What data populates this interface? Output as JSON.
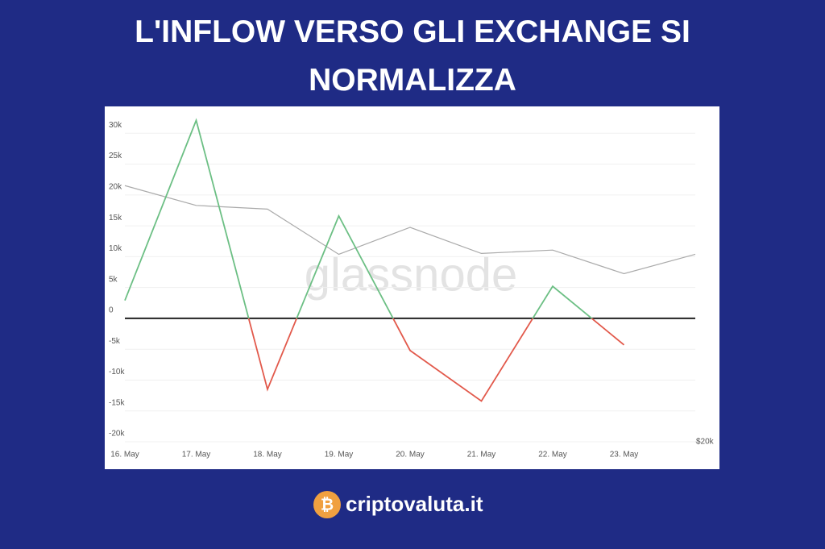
{
  "chart_data": {
    "type": "line",
    "title": "L'INFLOW VERSO GLI EXCHANGE SI NORMALIZZA",
    "watermark": "glassnode",
    "x": [
      "16. May",
      "17. May",
      "18. May",
      "19. May",
      "20. May",
      "21. May",
      "22. May",
      "23. May",
      null
    ],
    "series": [
      {
        "color": "#aaaaaa",
        "axis": "y2",
        "values": [
          45500,
          42700,
          42200,
          36500,
          39800,
          36600,
          37000,
          34300,
          36500
        ]
      },
      {
        "color": "#6cbf84",
        "negative_color": "#e2594b",
        "values": [
          2900,
          32100,
          -11500,
          16600,
          -5200,
          -13400,
          5200,
          -4300,
          null
        ]
      }
    ],
    "ylim": [
      -20000,
      32000
    ],
    "yticks": [
      {
        "value": -20000,
        "label": "-20k"
      },
      {
        "value": -15000,
        "label": "-15k"
      },
      {
        "value": -10000,
        "label": "-10k"
      },
      {
        "value": -5000,
        "label": "-5k"
      },
      0,
      {
        "value": 5000,
        "label": "5k"
      },
      {
        "value": 10000,
        "label": "10k"
      },
      {
        "value": 15000,
        "label": "15k"
      },
      {
        "value": 20000,
        "label": "20k"
      },
      {
        "value": 25000,
        "label": "25k"
      },
      {
        "value": 30000,
        "label": "30k"
      }
    ],
    "y2lim": [
      20000,
      56000
    ],
    "y2log": true,
    "y2ticks": [
      {
        "value": 20000,
        "label": "$20k"
      }
    ],
    "grid": true
  },
  "brand": "criptovaluta.it"
}
